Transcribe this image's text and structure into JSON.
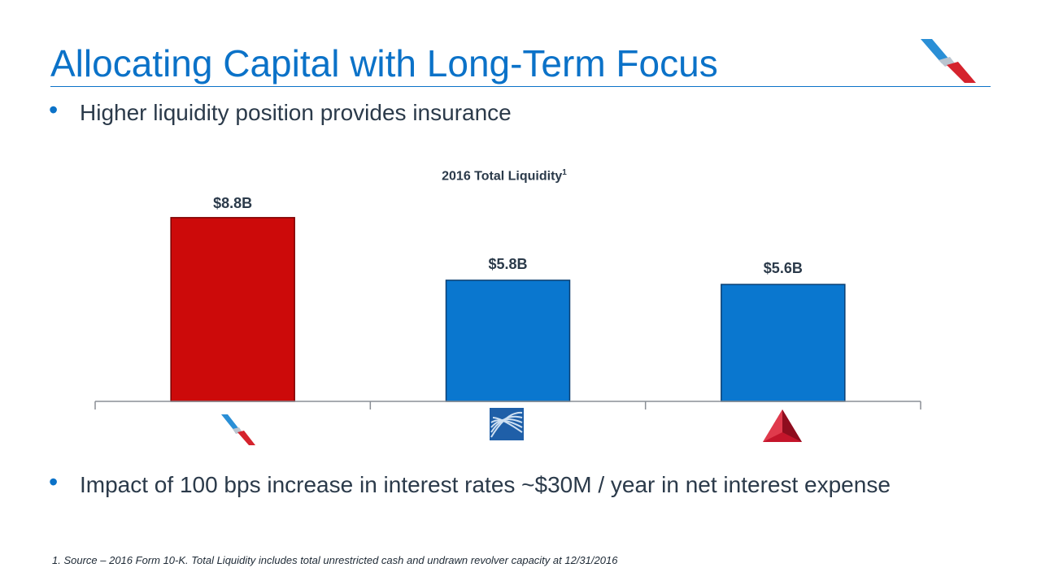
{
  "slide": {
    "title": "Allocating Capital with Long-Term Focus",
    "bullet1": "Higher liquidity position provides insurance",
    "bullet2": "Impact of 100 bps increase in interest rates  ~$30M / year in net interest expense",
    "footnote": "1. Source – 2016 Form 10-K. Total Liquidity includes total unrestricted cash and undrawn revolver capacity at 12/31/2016",
    "bullet_glyph": "•",
    "accent_color": "#0b72c8"
  },
  "chart_data": {
    "type": "bar",
    "title": "2016 Total Liquidity",
    "title_superscript": "1",
    "categories": [
      "american-airlines-logo",
      "united-airlines-logo",
      "delta-airlines-logo"
    ],
    "values": [
      8.8,
      5.8,
      5.6
    ],
    "labels": [
      "$8.8B",
      "$5.8B",
      "$5.6B"
    ],
    "colors": [
      "#cc0a0a",
      "#0a77cf",
      "#0a77cf"
    ],
    "unit": "$B",
    "ylim": [
      0,
      10
    ],
    "grid": false,
    "legend": "none"
  }
}
